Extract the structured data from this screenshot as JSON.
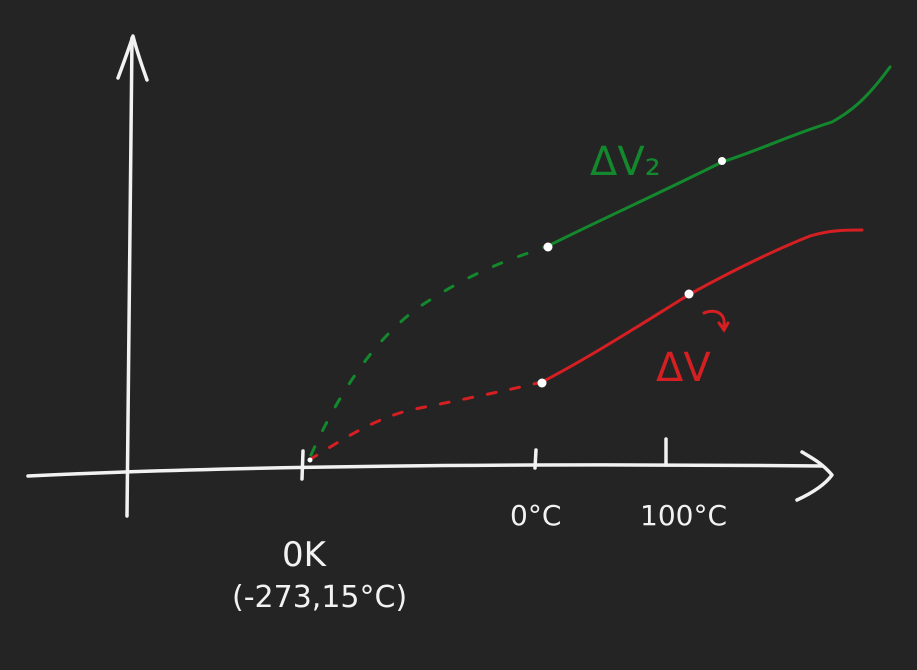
{
  "colors": {
    "background": "#242424",
    "axes": "#f2f2f2",
    "series_upper": "#13882d",
    "series_lower": "#d51f22",
    "points": "#ffffff"
  },
  "labels": {
    "origin_main": "0K",
    "origin_sub": "(-273,15°C)",
    "tick_zero": "0°C",
    "tick_hundred": "100°C",
    "upper_curve": "ΔV₂",
    "lower_curve": "ΔV"
  }
}
